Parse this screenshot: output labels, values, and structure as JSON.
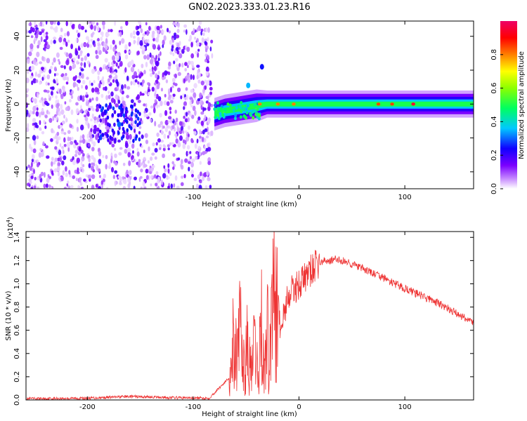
{
  "title": "GN02.2023.333.01.23.R16",
  "chart_data": [
    {
      "type": "heatmap",
      "xlabel": "Height of straight line (km)",
      "ylabel": "Frequency (Hz)",
      "xlim": [
        -258,
        165
      ],
      "ylim": [
        -50,
        49
      ],
      "xticks": [
        -200,
        -100,
        0,
        100
      ],
      "xtick_labels": [
        "-200",
        "-100",
        "0",
        "100"
      ],
      "yticks": [
        -40,
        -20,
        0,
        20,
        40
      ],
      "ytick_labels": [
        "-40",
        "-20",
        "0",
        "20",
        "40"
      ],
      "colorbar": {
        "label": "Normalized spectral amplitude",
        "range": [
          0,
          1
        ],
        "ticks": [
          0.0,
          0.2,
          0.4,
          0.6,
          0.8
        ],
        "tick_labels": [
          "0.0",
          "0.2",
          "0.4",
          "0.6",
          "0.8"
        ],
        "colors": [
          "#ffffff",
          "#9b30ff",
          "#3a00ff",
          "#00c8ff",
          "#00ff40",
          "#ffff00",
          "#ff7a00",
          "#ff0000",
          "#e0005a"
        ]
      },
      "noise_region": {
        "x_range": [
          -258,
          -82
        ],
        "freq_range": [
          -50,
          49
        ],
        "amplitude_range": [
          0.02,
          0.2
        ]
      },
      "signal_band": [
        {
          "x": -80,
          "freq_center": -6,
          "width": 6,
          "amplitude": 0.3
        },
        {
          "x": -70,
          "freq_center": -4,
          "width": 6,
          "amplitude": 0.3
        },
        {
          "x": -60,
          "freq_center": -3,
          "width": 6,
          "amplitude": 0.35
        },
        {
          "x": -50,
          "freq_center": -2,
          "width": 6,
          "amplitude": 0.4
        },
        {
          "x": -40,
          "freq_center": -1,
          "width": 6,
          "amplitude": 0.45
        },
        {
          "x": -30,
          "freq_center": 0,
          "width": 5,
          "amplitude": 0.5
        },
        {
          "x": -20,
          "freq_center": 0,
          "width": 5,
          "amplitude": 0.5
        },
        {
          "x": -10,
          "freq_center": 0,
          "width": 5,
          "amplitude": 0.5
        },
        {
          "x": 0,
          "freq_center": 0,
          "width": 5,
          "amplitude": 0.5
        },
        {
          "x": 25,
          "freq_center": 0,
          "width": 5,
          "amplitude": 0.55
        },
        {
          "x": 50,
          "freq_center": 0,
          "width": 5,
          "amplitude": 0.5
        },
        {
          "x": 75,
          "freq_center": 0,
          "width": 5,
          "amplitude": 0.5
        },
        {
          "x": 100,
          "freq_center": 0,
          "width": 5,
          "amplitude": 0.45
        },
        {
          "x": 130,
          "freq_center": 0,
          "width": 5,
          "amplitude": 0.4
        },
        {
          "x": 165,
          "freq_center": 0,
          "width": 5,
          "amplitude": 0.35
        }
      ],
      "peak_points": [
        {
          "x": -37,
          "freq": 0,
          "amplitude": 0.8
        },
        {
          "x": -20,
          "freq": 0,
          "amplitude": 0.8
        },
        {
          "x": -5,
          "freq": 0,
          "amplitude": 0.8
        },
        {
          "x": 75,
          "freq": 0,
          "amplitude": 0.85
        },
        {
          "x": 88,
          "freq": 0,
          "amplitude": 0.85
        },
        {
          "x": 108,
          "freq": 0,
          "amplitude": 0.95
        }
      ],
      "offband_spots": [
        {
          "x": -48,
          "freq": 11,
          "amplitude": 0.35
        },
        {
          "x": -35,
          "freq": 22,
          "amplitude": 0.25
        },
        {
          "x": -170,
          "freq": -12,
          "amplitude": 0.3
        }
      ]
    },
    {
      "type": "line",
      "xlabel": "Height of straight line (km)",
      "ylabel": "SNR (10 * v/v)",
      "y_multiplier_label": "(x10",
      "y_multiplier_exponent": "4",
      "y_multiplier_suffix": ")",
      "xlim": [
        -258,
        165
      ],
      "ylim": [
        0,
        1.45
      ],
      "xticks": [
        -200,
        -100,
        0,
        100
      ],
      "xtick_labels": [
        "-200",
        "-100",
        "0",
        "100"
      ],
      "yticks": [
        0.0,
        0.2,
        0.4,
        0.6,
        0.8,
        1.0,
        1.2,
        1.4
      ],
      "ytick_labels": [
        "0.0",
        "0.2",
        "0.4",
        "0.6",
        "0.8",
        "1.0",
        "1.2",
        "1.4"
      ],
      "color": "#ee3333",
      "x": [
        -258,
        -200,
        -160,
        -120,
        -85,
        -65,
        -62,
        -58,
        -55,
        -52,
        -50,
        -45,
        -42,
        -38,
        -36,
        -33,
        -30,
        -28,
        -25,
        -23,
        -22,
        -20,
        -18,
        -15,
        -12,
        -10,
        -5,
        0,
        5,
        10,
        15,
        20,
        25,
        30,
        35,
        40,
        45,
        50,
        60,
        70,
        80,
        90,
        100,
        110,
        120,
        130,
        140,
        150,
        160,
        165
      ],
      "values": [
        0.01,
        0.015,
        0.03,
        0.02,
        0.015,
        0.2,
        0.6,
        0.35,
        0.65,
        0.25,
        0.5,
        0.2,
        0.45,
        0.15,
        0.8,
        0.2,
        0.6,
        0.3,
        0.9,
        1.2,
        1.45,
        1.1,
        0.6,
        0.7,
        0.85,
        0.9,
        0.95,
        1.0,
        1.05,
        1.1,
        1.15,
        1.18,
        1.2,
        1.2,
        1.21,
        1.2,
        1.19,
        1.17,
        1.13,
        1.09,
        1.05,
        1.0,
        0.96,
        0.92,
        0.88,
        0.84,
        0.79,
        0.74,
        0.69,
        0.67
      ]
    }
  ]
}
